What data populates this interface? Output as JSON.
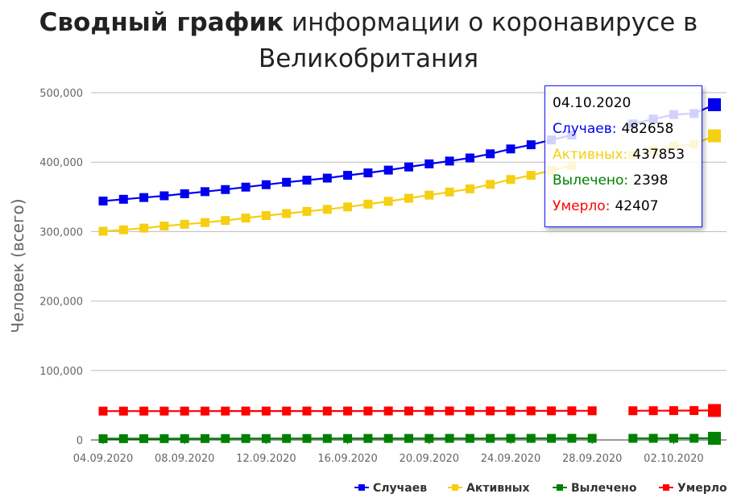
{
  "title": {
    "bold": "Сводный график",
    "rest": " информации о коронавирусе в Великобритания"
  },
  "tooltip": {
    "date": "04.10.2020",
    "rows": [
      {
        "label": "Случаев:",
        "value": "482658",
        "color": "#0000ee"
      },
      {
        "label": "Активных:",
        "value": "437853",
        "color": "#f5cf12"
      },
      {
        "label": "Вылечено:",
        "value": "2398",
        "color": "#008000"
      },
      {
        "label": "Умерло:",
        "value": "42407",
        "color": "#ff0000"
      }
    ]
  },
  "chart_data": {
    "type": "line",
    "ylabel": "Человек (всего)",
    "xlabel": "",
    "ylim": [
      0,
      500000
    ],
    "y_ticks": [
      "0",
      "100,000",
      "200,000",
      "300,000",
      "400,000",
      "500,000"
    ],
    "y_tick_values": [
      0,
      100000,
      200000,
      300000,
      400000,
      500000
    ],
    "x_tick_labels": [
      "04.09.2020",
      "08.09.2020",
      "12.09.2020",
      "16.09.2020",
      "20.09.2020",
      "24.09.2020",
      "28.09.2020",
      "02.10.2020"
    ],
    "x": [
      "04.09.2020",
      "05.09.2020",
      "06.09.2020",
      "07.09.2020",
      "08.09.2020",
      "09.09.2020",
      "10.09.2020",
      "11.09.2020",
      "12.09.2020",
      "13.09.2020",
      "14.09.2020",
      "15.09.2020",
      "16.09.2020",
      "17.09.2020",
      "18.09.2020",
      "19.09.2020",
      "20.09.2020",
      "21.09.2020",
      "22.09.2020",
      "23.09.2020",
      "24.09.2020",
      "25.09.2020",
      "26.09.2020",
      "27.09.2020",
      "28.09.2020",
      "29.09.2020",
      "30.09.2020",
      "01.10.2020",
      "02.10.2020",
      "03.10.2020",
      "04.10.2020"
    ],
    "grid": true,
    "legend_position": "bottom-right",
    "series": [
      {
        "name": "Случаев",
        "color": "#0000ee",
        "values": [
          344000,
          346500,
          349000,
          351500,
          354500,
          357500,
          360500,
          364000,
          367500,
          371000,
          374000,
          377000,
          381000,
          384500,
          388500,
          393000,
          397500,
          401500,
          406000,
          412000,
          419000,
          425000,
          432000,
          439000,
          null,
          null,
          455000,
          462000,
          468500,
          470000,
          482658
        ]
      },
      {
        "name": "Активных",
        "color": "#f5cf12",
        "values": [
          300500,
          302500,
          305000,
          308000,
          310500,
          313000,
          316000,
          319500,
          323000,
          326000,
          329000,
          332000,
          335500,
          339500,
          343500,
          348000,
          352500,
          357000,
          361500,
          368000,
          375000,
          381000,
          388000,
          395000,
          null,
          null,
          410000,
          417000,
          423000,
          426000,
          437853
        ]
      },
      {
        "name": "Вылечено",
        "color": "#008000",
        "values": [
          1800,
          1850,
          1900,
          1900,
          1950,
          2000,
          2000,
          2050,
          2050,
          2100,
          2100,
          2100,
          2150,
          2150,
          2200,
          2200,
          2200,
          2250,
          2250,
          2250,
          2300,
          2300,
          2300,
          2350,
          2350,
          null,
          2350,
          2350,
          2380,
          2390,
          2398
        ]
      },
      {
        "name": "Умерло",
        "color": "#ff0000",
        "values": [
          41500,
          41520,
          41540,
          41550,
          41560,
          41580,
          41600,
          41610,
          41620,
          41640,
          41650,
          41660,
          41680,
          41700,
          41720,
          41740,
          41760,
          41780,
          41800,
          41820,
          41850,
          41880,
          41900,
          41950,
          41980,
          null,
          42050,
          42150,
          42250,
          42320,
          42407
        ]
      }
    ]
  }
}
